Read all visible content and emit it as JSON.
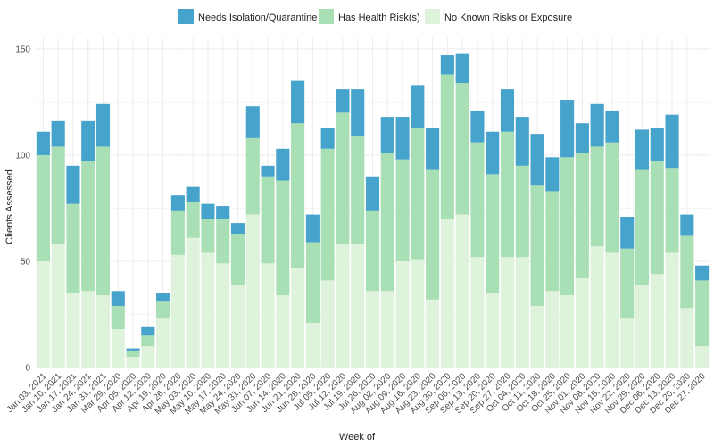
{
  "colors": {
    "isolation": "#45a3cc",
    "risk": "#a8dfb4",
    "none": "#dff3dc",
    "grid_major": "#ebebeb",
    "grid_minor": "#f5f5f5"
  },
  "chart_data": {
    "type": "bar",
    "stacked": true,
    "title": "",
    "xlabel": "Week of",
    "ylabel": "Clients Assessed",
    "ylim": [
      0,
      155
    ],
    "y_ticks": [
      0,
      50,
      100,
      150
    ],
    "grid": true,
    "legend_position": "top",
    "legend": [
      {
        "name": "Needs Isolation/Quarantine",
        "color_key": "isolation"
      },
      {
        "name": "Has Health Risk(s)",
        "color_key": "risk"
      },
      {
        "name": "No Known Risks or Exposure",
        "color_key": "none"
      }
    ],
    "categories": [
      "Jan 03, 2021",
      "Jan 10, 2021",
      "Jan 17, 2021",
      "Jan 24, 2021",
      "Jan 31, 2021",
      "Mar 29, 2020",
      "Apr 05, 2020",
      "Apr 12, 2020",
      "Apr 19, 2020",
      "Apr 26, 2020",
      "May 03, 2020",
      "May 10, 2020",
      "May 17, 2020",
      "May 24, 2020",
      "May 31, 2020",
      "Jun 07, 2020",
      "Jun 14, 2020",
      "Jun 21, 2020",
      "Jun 28, 2020",
      "Jul 05, 2020",
      "Jul 12, 2020",
      "Jul 19, 2020",
      "Jul 26, 2020",
      "Aug 02, 2020",
      "Aug 09, 2020",
      "Aug 16, 2020",
      "Aug 23, 2020",
      "Aug 30, 2020",
      "Sep 06, 2020",
      "Sep 13, 2020",
      "Sep 20, 2020",
      "Sep 27, 2020",
      "Oct 04, 2020",
      "Oct 11, 2020",
      "Oct 18, 2020",
      "Oct 25, 2020",
      "Nov 01, 2020",
      "Nov 08, 2020",
      "Nov 15, 2020",
      "Nov 22, 2020",
      "Nov 29, 2020",
      "Dec 06, 2020",
      "Dec 13, 2020",
      "Dec 20, 2020",
      "Dec 27, 2020"
    ],
    "series": [
      {
        "name": "No Known Risks or Exposure",
        "color_key": "none",
        "values": [
          50,
          58,
          35,
          36,
          34,
          18,
          5,
          10,
          23,
          53,
          61,
          54,
          49,
          39,
          72,
          49,
          34,
          47,
          21,
          41,
          58,
          58,
          36,
          36,
          50,
          51,
          32,
          70,
          72,
          52,
          35,
          52,
          52,
          29,
          36,
          34,
          42,
          57,
          54,
          23,
          39,
          44,
          54,
          28,
          10
        ]
      },
      {
        "name": "Has Health Risk(s)",
        "color_key": "risk",
        "values": [
          50,
          46,
          42,
          61,
          70,
          11,
          3,
          5,
          8,
          21,
          17,
          16,
          21,
          24,
          36,
          41,
          54,
          68,
          38,
          62,
          62,
          51,
          38,
          65,
          48,
          62,
          61,
          68,
          62,
          54,
          56,
          59,
          43,
          57,
          47,
          65,
          59,
          47,
          52,
          33,
          54,
          53,
          40,
          34,
          31
        ]
      },
      {
        "name": "Needs Isolation/Quarantine",
        "color_key": "isolation",
        "values": [
          11,
          12,
          18,
          19,
          20,
          7,
          1,
          4,
          4,
          7,
          7,
          7,
          6,
          5,
          15,
          5,
          15,
          20,
          13,
          10,
          11,
          22,
          16,
          17,
          20,
          20,
          20,
          9,
          14,
          15,
          20,
          20,
          23,
          24,
          16,
          27,
          14,
          20,
          15,
          15,
          19,
          16,
          25,
          10,
          7
        ]
      }
    ]
  }
}
